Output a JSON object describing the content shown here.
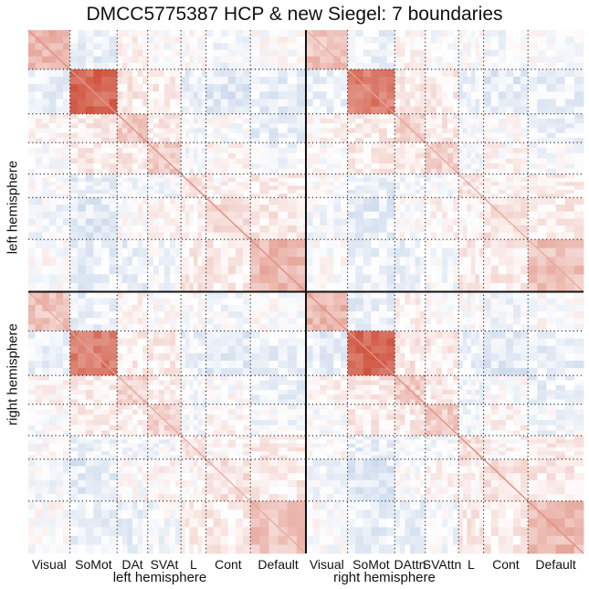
{
  "chart_data": {
    "type": "heatmap",
    "title": "DMCC5775387 HCP & new Siegel: 7 boundaries",
    "colormap": [
      "#3b6fb6",
      "#ffffff",
      "#c8381f"
    ],
    "grid_lines": "dotted",
    "hemisphere_labels": [
      "left hemisphere",
      "right hemisphere"
    ],
    "x_tick_labels_left": [
      "Visual",
      "SoMot",
      "DAt",
      "SVAt",
      "L",
      "Cont",
      "Default"
    ],
    "x_tick_labels_right": [
      "Visual",
      "SoMot",
      "DAttn",
      "SVAttn",
      "L",
      "Cont",
      "Default"
    ],
    "networks": [
      "Visual",
      "SoMot",
      "DAttn",
      "SVAttn",
      "L",
      "Cont",
      "Default"
    ],
    "network_proportions": [
      0.15,
      0.17,
      0.11,
      0.12,
      0.09,
      0.16,
      0.2
    ],
    "network_within_correlation": [
      0.35,
      0.75,
      0.25,
      0.25,
      0.15,
      0.15,
      0.35
    ],
    "between_network_correlation": [
      [
        0.35,
        -0.1,
        0.05,
        0.0,
        0.0,
        -0.05,
        0.0
      ],
      [
        -0.1,
        0.75,
        0.1,
        0.1,
        -0.1,
        -0.15,
        -0.1
      ],
      [
        0.05,
        0.1,
        0.25,
        0.1,
        -0.05,
        0.0,
        -0.1
      ],
      [
        0.0,
        0.1,
        0.1,
        0.25,
        -0.05,
        0.05,
        -0.05
      ],
      [
        0.0,
        -0.1,
        -0.05,
        -0.05,
        0.15,
        0.05,
        0.1
      ],
      [
        -0.05,
        -0.15,
        0.0,
        0.05,
        0.05,
        0.15,
        0.1
      ],
      [
        0.0,
        -0.1,
        -0.1,
        -0.05,
        0.1,
        0.1,
        0.35
      ]
    ],
    "color_range": [
      -1,
      1
    ]
  }
}
